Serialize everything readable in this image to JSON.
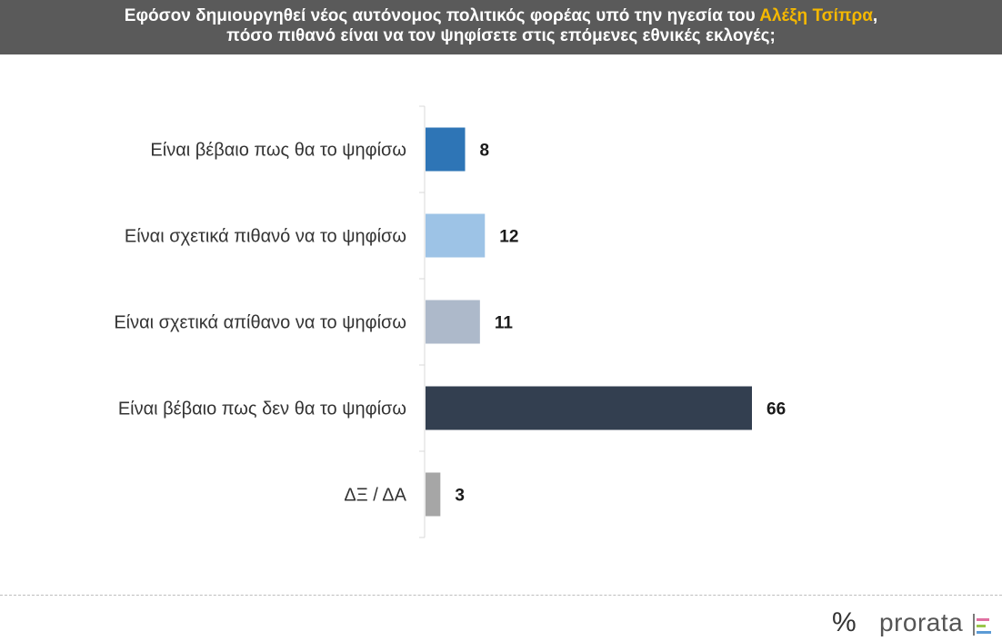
{
  "header": {
    "line1_before": "Εφόσον δημιουργηθεί νέος αυτόνομος πολιτικός φορέας υπό την ηγεσία του ",
    "line1_highlight": "Αλέξη Τσίπρα",
    "line1_after": ",",
    "line2": "πόσο πιθανό είναι να τον ψηφίσετε στις επόμενες εθνικές εκλογές;",
    "highlight_color": "#f5b800",
    "background_color": "#5a5a5a"
  },
  "chart_data": {
    "type": "bar",
    "orientation": "horizontal",
    "categories": [
      "Είναι βέβαιο πως θα το ψηφίσω",
      "Είναι σχετικά πιθανό να το ψηφίσω",
      "Είναι σχετικά απίθανο να το ψηφίσω",
      "Είναι βέβαιο πως δεν θα το ψηφίσω",
      "ΔΞ / ΔΑ"
    ],
    "values": [
      8,
      12,
      11,
      66,
      3
    ],
    "colors": [
      "#2e75b6",
      "#9dc3e6",
      "#adb9ca",
      "#333f50",
      "#a6a6a6"
    ],
    "xlim": [
      0,
      70
    ],
    "grid": false,
    "data_labels": true
  },
  "footer": {
    "logo_symbol": "%",
    "brand_name": "prorata",
    "brand_mark_colors": [
      "#e06fa0",
      "#9ac64a",
      "#5b9bd5"
    ]
  }
}
